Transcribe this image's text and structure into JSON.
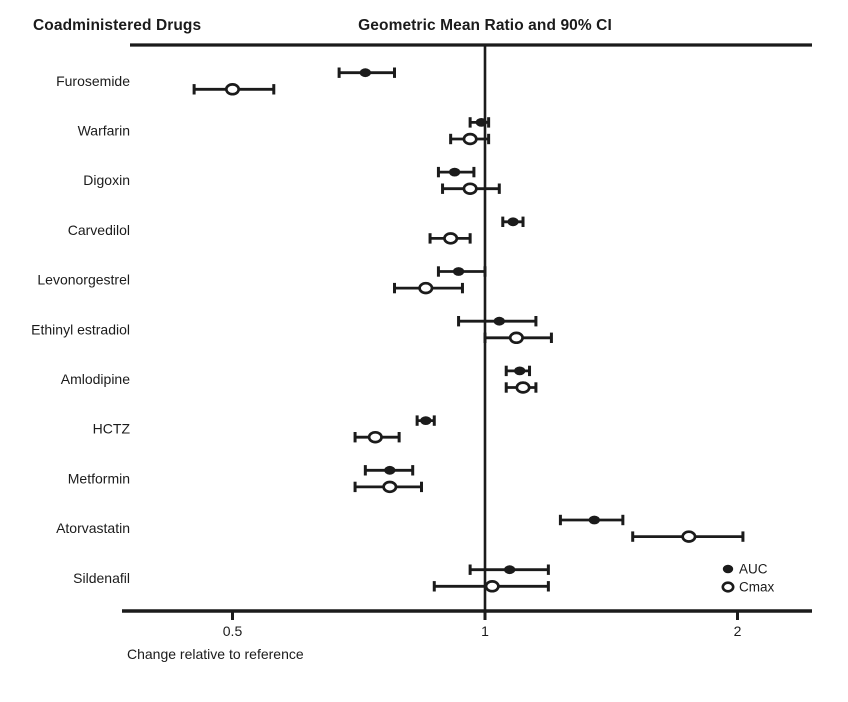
{
  "header": {
    "left_title": "Coadministered Drugs",
    "right_title": "Geometric Mean Ratio and 90% CI"
  },
  "axis": {
    "label": "Change relative to reference"
  },
  "legend": [
    {
      "label": "AUC",
      "marker": "filled-circle"
    },
    {
      "label": "Cmax",
      "marker": "open-circle"
    }
  ],
  "colors": {
    "ink": "#1b1b1b",
    "background": "#ffffff"
  },
  "chart_data": {
    "type": "forest",
    "title": "Geometric Mean Ratio and 90% CI",
    "xlabel": "Change relative to reference",
    "x_scale": "log2",
    "x_ticks": [
      {
        "value": 0.5,
        "label": "0.5"
      },
      {
        "value": 1,
        "label": "1"
      },
      {
        "value": 2,
        "label": "2"
      }
    ],
    "x_range": [
      0.38,
      2.45
    ],
    "reference_x": 1,
    "series_labels": [
      "AUC",
      "Cmax"
    ],
    "rows": [
      {
        "drug": "Furosemide",
        "auc": {
          "mid": 0.72,
          "lo": 0.67,
          "hi": 0.78
        },
        "cmax": {
          "mid": 0.5,
          "lo": 0.45,
          "hi": 0.56
        }
      },
      {
        "drug": "Warfarin",
        "auc": {
          "mid": 0.99,
          "lo": 0.96,
          "hi": 1.01
        },
        "cmax": {
          "mid": 0.96,
          "lo": 0.91,
          "hi": 1.01
        }
      },
      {
        "drug": "Digoxin",
        "auc": {
          "mid": 0.92,
          "lo": 0.88,
          "hi": 0.97
        },
        "cmax": {
          "mid": 0.96,
          "lo": 0.89,
          "hi": 1.04
        }
      },
      {
        "drug": "Carvedilol",
        "auc": {
          "mid": 1.08,
          "lo": 1.05,
          "hi": 1.11
        },
        "cmax": {
          "mid": 0.91,
          "lo": 0.86,
          "hi": 0.96
        }
      },
      {
        "drug": "Levonorgestrel",
        "auc": {
          "mid": 0.93,
          "lo": 0.88,
          "hi": 1.0
        },
        "cmax": {
          "mid": 0.85,
          "lo": 0.78,
          "hi": 0.94
        }
      },
      {
        "drug": "Ethinyl estradiol",
        "auc": {
          "mid": 1.04,
          "lo": 0.93,
          "hi": 1.15
        },
        "cmax": {
          "mid": 1.09,
          "lo": 1.0,
          "hi": 1.2
        }
      },
      {
        "drug": "Amlodipine",
        "auc": {
          "mid": 1.1,
          "lo": 1.06,
          "hi": 1.13
        },
        "cmax": {
          "mid": 1.11,
          "lo": 1.06,
          "hi": 1.15
        }
      },
      {
        "drug": "HCTZ",
        "auc": {
          "mid": 0.85,
          "lo": 0.83,
          "hi": 0.87
        },
        "cmax": {
          "mid": 0.74,
          "lo": 0.7,
          "hi": 0.79
        }
      },
      {
        "drug": "Metformin",
        "auc": {
          "mid": 0.77,
          "lo": 0.72,
          "hi": 0.82
        },
        "cmax": {
          "mid": 0.77,
          "lo": 0.7,
          "hi": 0.84
        }
      },
      {
        "drug": "Atorvastatin",
        "auc": {
          "mid": 1.35,
          "lo": 1.23,
          "hi": 1.46
        },
        "cmax": {
          "mid": 1.75,
          "lo": 1.5,
          "hi": 2.03
        }
      },
      {
        "drug": "Sildenafil",
        "auc": {
          "mid": 1.07,
          "lo": 0.96,
          "hi": 1.19
        },
        "cmax": {
          "mid": 1.02,
          "lo": 0.87,
          "hi": 1.19
        }
      }
    ]
  }
}
